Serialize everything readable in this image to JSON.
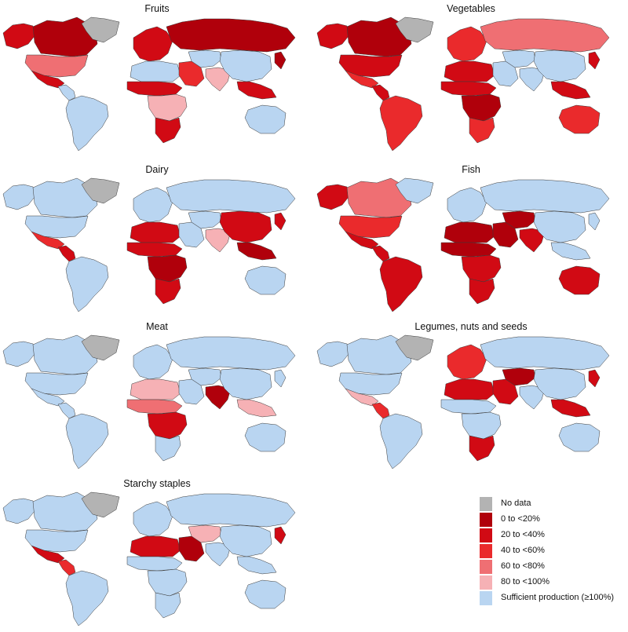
{
  "panels": [
    {
      "title": "Fruits",
      "regions": {
        "greenland": "nodata",
        "canada": 0,
        "alaska": 1,
        "usa": 3,
        "mexico": 1,
        "central_am": 5,
        "south_am": 5,
        "europe": 1,
        "russia": 0,
        "n_africa": 5,
        "sahel": 1,
        "mid_africa": 4,
        "s_africa": 1,
        "middle_east": 2,
        "c_asia": 5,
        "india": 4,
        "china": 5,
        "se_asia": 1,
        "japan": 0,
        "australia": 5
      }
    },
    {
      "title": "Vegetables",
      "regions": {
        "greenland": "nodata",
        "canada": 0,
        "alaska": 1,
        "usa": 1,
        "mexico": 2,
        "central_am": 1,
        "south_am": 2,
        "europe": 2,
        "russia": 3,
        "n_africa": 1,
        "sahel": 1,
        "mid_africa": 0,
        "s_africa": 2,
        "middle_east": 5,
        "c_asia": 5,
        "india": 5,
        "china": 5,
        "se_asia": 1,
        "japan": 1,
        "australia": 2
      }
    },
    {
      "title": "Dairy",
      "regions": {
        "greenland": "nodata",
        "canada": 5,
        "alaska": 5,
        "usa": 5,
        "mexico": 2,
        "central_am": 1,
        "south_am": 5,
        "europe": 5,
        "russia": 5,
        "n_africa": 1,
        "sahel": 1,
        "mid_africa": 0,
        "s_africa": 1,
        "middle_east": 5,
        "c_asia": 5,
        "india": 4,
        "china": 1,
        "se_asia": 0,
        "japan": 1,
        "australia": 5
      }
    },
    {
      "title": "Fish",
      "regions": {
        "greenland": 5,
        "canada": 3,
        "alaska": 1,
        "usa": 2,
        "mexico": 1,
        "central_am": 1,
        "south_am": 1,
        "europe": 5,
        "russia": 5,
        "n_africa": 0,
        "sahel": 0,
        "mid_africa": 1,
        "s_africa": 1,
        "middle_east": 0,
        "c_asia": 0,
        "india": 1,
        "china": 5,
        "se_asia": 5,
        "japan": 5,
        "australia": 1
      }
    },
    {
      "title": "Meat",
      "regions": {
        "greenland": "nodata",
        "canada": 5,
        "alaska": 5,
        "usa": 5,
        "mexico": 5,
        "central_am": 5,
        "south_am": 5,
        "europe": 5,
        "russia": 5,
        "n_africa": 4,
        "sahel": 3,
        "mid_africa": 1,
        "s_africa": 5,
        "middle_east": 5,
        "c_asia": 5,
        "india": 0,
        "china": 5,
        "se_asia": 4,
        "japan": 5,
        "australia": 5
      }
    },
    {
      "title": "Legumes, nuts and seeds",
      "regions": {
        "greenland": "nodata",
        "canada": 5,
        "alaska": 5,
        "usa": 5,
        "mexico": 4,
        "central_am": 2,
        "south_am": 5,
        "europe": 2,
        "russia": 5,
        "n_africa": 1,
        "sahel": 5,
        "mid_africa": 5,
        "s_africa": 1,
        "middle_east": 1,
        "c_asia": 0,
        "india": 5,
        "china": 5,
        "se_asia": 1,
        "japan": 1,
        "australia": 5
      }
    },
    {
      "title": "Starchy staples",
      "regions": {
        "greenland": "nodata",
        "canada": 5,
        "alaska": 5,
        "usa": 5,
        "mexico": 1,
        "central_am": 2,
        "south_am": 5,
        "europe": 5,
        "russia": 5,
        "n_africa": 1,
        "sahel": 5,
        "mid_africa": 5,
        "s_africa": 5,
        "middle_east": 0,
        "c_asia": 4,
        "india": 5,
        "china": 5,
        "se_asia": 5,
        "japan": 1,
        "australia": 5
      }
    }
  ],
  "legend": [
    {
      "label": "No data",
      "color": "#b3b3b3"
    },
    {
      "label": "0 to <20%",
      "color": "#b0000b"
    },
    {
      "label": "20 to <40%",
      "color": "#d10a14"
    },
    {
      "label": "40 to <60%",
      "color": "#ea2a2c"
    },
    {
      "label": "60 to <80%",
      "color": "#ef6f73"
    },
    {
      "label": "80 to <100%",
      "color": "#f6b1b5"
    },
    {
      "label": "Sufficient production (≥100%)",
      "color": "#b9d5f1"
    }
  ]
}
